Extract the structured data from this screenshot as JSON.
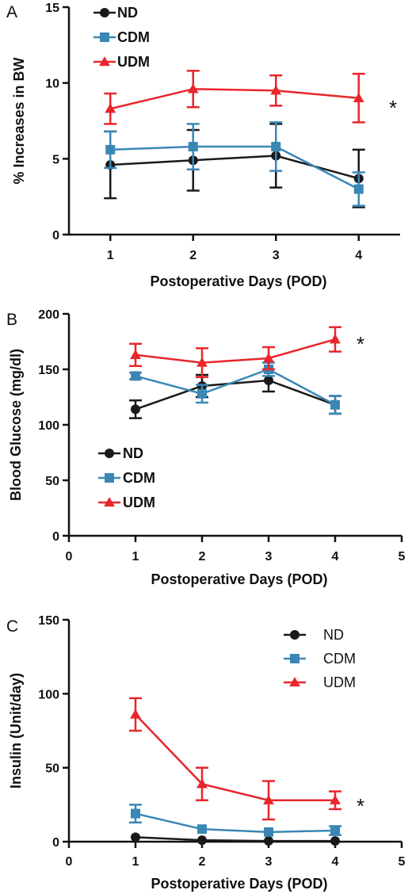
{
  "chart_data": [
    {
      "panel_label": "A",
      "type": "line",
      "xlabel": "Postoperative Days (POD)",
      "ylabel": "% Increases in BW",
      "xlim": [
        0.5,
        4.5
      ],
      "ylim": [
        0,
        15
      ],
      "x_ticks": [
        1,
        2,
        3,
        4
      ],
      "x_tick_labels": [
        "1",
        "2",
        "3",
        "4"
      ],
      "y_ticks": [
        0,
        5,
        10,
        15
      ],
      "y_tick_labels": [
        "0",
        "5",
        "10",
        "15"
      ],
      "legend_position": "top-left",
      "legend_bold": true,
      "annotation": "*",
      "series": [
        {
          "name": "ND",
          "marker": "circle",
          "color": "#1a1a1a",
          "x": [
            1,
            2,
            3,
            4
          ],
          "y": [
            4.6,
            4.9,
            5.2,
            3.7
          ],
          "err": [
            2.2,
            2.0,
            2.1,
            1.9
          ]
        },
        {
          "name": "CDM",
          "marker": "square",
          "color": "#3a87b5",
          "x": [
            1,
            2,
            3,
            4
          ],
          "y": [
            5.6,
            5.8,
            5.8,
            3.0
          ],
          "err": [
            1.2,
            1.5,
            1.6,
            1.1
          ]
        },
        {
          "name": "UDM",
          "marker": "triangle",
          "color": "#e8262b",
          "x": [
            1,
            2,
            3,
            4
          ],
          "y": [
            8.3,
            9.6,
            9.5,
            9.0
          ],
          "err": [
            1.0,
            1.2,
            1.0,
            1.6
          ]
        }
      ]
    },
    {
      "panel_label": "B",
      "type": "line",
      "xlabel": "Postoperative Days (POD)",
      "ylabel": "Blood Glucose (mg/dl)",
      "xlim": [
        0,
        5
      ],
      "ylim": [
        0,
        200
      ],
      "x_ticks": [
        0,
        1,
        2,
        3,
        4,
        5
      ],
      "x_tick_labels": [
        "0",
        "1",
        "2",
        "3",
        "4",
        "5"
      ],
      "y_ticks": [
        0,
        50,
        100,
        150,
        200
      ],
      "y_tick_labels": [
        "0",
        "50",
        "100",
        "150",
        "200"
      ],
      "legend_position": "bottom-left",
      "legend_bold": true,
      "annotation": "*",
      "series": [
        {
          "name": "ND",
          "marker": "circle",
          "color": "#1a1a1a",
          "x": [
            1,
            2,
            3,
            4
          ],
          "y": [
            114,
            135,
            140,
            118
          ],
          "err": [
            8,
            10,
            10,
            8
          ]
        },
        {
          "name": "CDM",
          "marker": "square",
          "color": "#3a87b5",
          "x": [
            1,
            2,
            3,
            4
          ],
          "y": [
            144,
            128,
            150,
            118
          ],
          "err": [
            3,
            8,
            6,
            8
          ]
        },
        {
          "name": "UDM",
          "marker": "triangle",
          "color": "#e8262b",
          "x": [
            1,
            2,
            3,
            4
          ],
          "y": [
            163,
            156,
            160,
            177
          ],
          "err": [
            10,
            13,
            10,
            11
          ]
        }
      ]
    },
    {
      "panel_label": "C",
      "type": "line",
      "xlabel": "Postoperative Days (POD)",
      "ylabel": "Insulin (Unit/day)",
      "xlim": [
        0,
        5
      ],
      "ylim": [
        0,
        150
      ],
      "x_ticks": [
        0,
        1,
        2,
        3,
        4,
        5
      ],
      "x_tick_labels": [
        "0",
        "1",
        "2",
        "3",
        "4",
        "5"
      ],
      "y_ticks": [
        0,
        50,
        100,
        150
      ],
      "y_tick_labels": [
        "0",
        "50",
        "100",
        "150"
      ],
      "legend_position": "top-right",
      "legend_bold": false,
      "annotation": "*",
      "series": [
        {
          "name": "ND",
          "marker": "circle",
          "color": "#1a1a1a",
          "x": [
            1,
            2,
            3,
            4
          ],
          "y": [
            3,
            1,
            0.5,
            0.5
          ],
          "err": [
            0,
            0,
            0,
            0
          ]
        },
        {
          "name": "CDM",
          "marker": "square",
          "color": "#3a87b5",
          "x": [
            1,
            2,
            3,
            4
          ],
          "y": [
            19,
            8.5,
            6.5,
            7.5
          ],
          "err": [
            6,
            0,
            0,
            3
          ]
        },
        {
          "name": "UDM",
          "marker": "triangle",
          "color": "#e8262b",
          "x": [
            1,
            2,
            3,
            4
          ],
          "y": [
            86,
            39,
            28,
            28
          ],
          "err": [
            11,
            11,
            13,
            6
          ]
        }
      ]
    }
  ]
}
